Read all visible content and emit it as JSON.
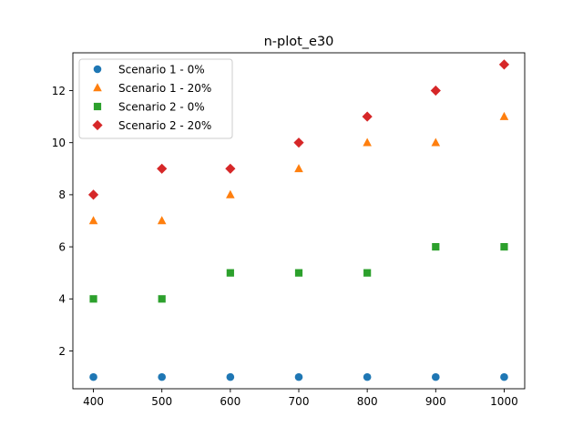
{
  "chart_data": {
    "type": "scatter",
    "title": "n-plot_e30",
    "xlabel": "",
    "ylabel": "",
    "x": [
      400,
      500,
      600,
      700,
      800,
      900,
      1000
    ],
    "xlim": [
      370,
      1030
    ],
    "ylim": [
      0.55,
      13.45
    ],
    "xticks": [
      400,
      500,
      600,
      700,
      800,
      900,
      1000
    ],
    "yticks": [
      2,
      4,
      6,
      8,
      10,
      12
    ],
    "grid": false,
    "legend_position": "top-left",
    "series": [
      {
        "name": "Scenario 1 - 0%",
        "marker": "circle",
        "color": "#1f77b4",
        "values": [
          1,
          1,
          1,
          1,
          1,
          1,
          1
        ]
      },
      {
        "name": "Scenario 1 - 20%",
        "marker": "triangle",
        "color": "#ff7f0e",
        "values": [
          7,
          7,
          8,
          9,
          10,
          10,
          11
        ]
      },
      {
        "name": "Scenario 2 - 0%",
        "marker": "square",
        "color": "#2ca02c",
        "values": [
          4,
          4,
          5,
          5,
          5,
          6,
          6
        ]
      },
      {
        "name": "Scenario 2 - 20%",
        "marker": "diamond",
        "color": "#d62728",
        "values": [
          8,
          9,
          9,
          10,
          11,
          12,
          13
        ]
      }
    ]
  }
}
